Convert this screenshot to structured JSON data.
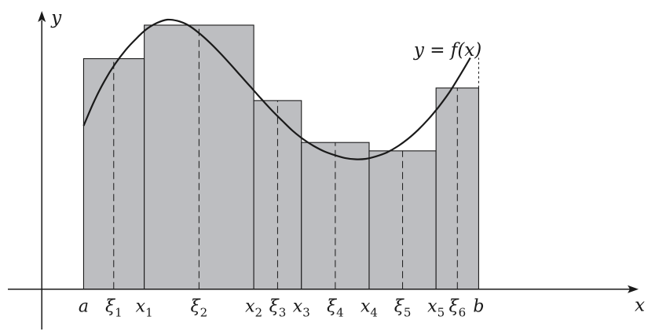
{
  "axes": {
    "x_label": "x",
    "y_label": "y",
    "x_range": [
      -1,
      14.5
    ],
    "y_range": [
      -1,
      6.9
    ]
  },
  "curve": {
    "label": "y = f(x)",
    "samples": [
      [
        1.0,
        3.9
      ],
      [
        1.25,
        4.48
      ],
      [
        1.5,
        4.97
      ],
      [
        1.75,
        5.37
      ],
      [
        2.0,
        5.7
      ],
      [
        2.25,
        5.97
      ],
      [
        2.5,
        6.2
      ],
      [
        2.75,
        6.35
      ],
      [
        3.0,
        6.43
      ],
      [
        3.25,
        6.4
      ],
      [
        3.5,
        6.3
      ],
      [
        3.75,
        6.12
      ],
      [
        4.0,
        5.9
      ],
      [
        4.25,
        5.65
      ],
      [
        4.5,
        5.38
      ],
      [
        4.75,
        5.1
      ],
      [
        5.0,
        4.82
      ],
      [
        5.25,
        4.54
      ],
      [
        5.5,
        4.27
      ],
      [
        5.75,
        4.02
      ],
      [
        6.0,
        3.78
      ],
      [
        6.25,
        3.58
      ],
      [
        6.5,
        3.42
      ],
      [
        6.75,
        3.29
      ],
      [
        7.0,
        3.2
      ],
      [
        7.25,
        3.13
      ],
      [
        7.5,
        3.1
      ],
      [
        7.75,
        3.11
      ],
      [
        8.0,
        3.17
      ],
      [
        8.25,
        3.26
      ],
      [
        8.5,
        3.4
      ],
      [
        8.75,
        3.58
      ],
      [
        9.0,
        3.8
      ],
      [
        9.25,
        4.06
      ],
      [
        9.5,
        4.36
      ],
      [
        9.75,
        4.7
      ],
      [
        10.0,
        5.1
      ],
      [
        10.25,
        5.52
      ]
    ]
  },
  "rectangles": [
    {
      "left": "a",
      "right": "x1",
      "tag": "ξ1",
      "x0": 1.0,
      "x1": 2.45,
      "xi": 1.72,
      "height": 5.5
    },
    {
      "left": "x1",
      "right": "x2",
      "tag": "ξ2",
      "x0": 2.45,
      "x1": 5.07,
      "xi": 3.76,
      "height": 6.3
    },
    {
      "left": "x2",
      "right": "x3",
      "tag": "ξ3",
      "x0": 5.07,
      "x1": 6.21,
      "xi": 5.64,
      "height": 4.5
    },
    {
      "left": "x3",
      "right": "x4",
      "tag": "ξ4",
      "x0": 6.21,
      "x1": 7.83,
      "xi": 7.02,
      "height": 3.5
    },
    {
      "left": "x4",
      "right": "x5",
      "tag": "ξ5",
      "x0": 7.83,
      "x1": 9.43,
      "xi": 8.63,
      "height": 3.3
    },
    {
      "left": "x5",
      "right": "b",
      "tag": "ξ6",
      "x0": 9.43,
      "x1": 10.45,
      "xi": 9.94,
      "height": 4.8
    }
  ],
  "partition_labels": [
    {
      "base": "a",
      "sub": "",
      "x": 1.0
    },
    {
      "base": "ξ",
      "sub": "1",
      "x": 1.72
    },
    {
      "base": "x",
      "sub": "1",
      "x": 2.45
    },
    {
      "base": "ξ",
      "sub": "2",
      "x": 3.76
    },
    {
      "base": "x",
      "sub": "2",
      "x": 5.07
    },
    {
      "base": "ξ",
      "sub": "3",
      "x": 5.64
    },
    {
      "base": "x",
      "sub": "3",
      "x": 6.21
    },
    {
      "base": "ξ",
      "sub": "4",
      "x": 7.02
    },
    {
      "base": "x",
      "sub": "4",
      "x": 7.83
    },
    {
      "base": "ξ",
      "sub": "5",
      "x": 8.63
    },
    {
      "base": "x",
      "sub": "5",
      "x": 9.43
    },
    {
      "base": "ξ",
      "sub": "6",
      "x": 9.94
    },
    {
      "base": "b",
      "sub": "",
      "x": 10.45
    }
  ],
  "colors": {
    "rect_fill": "#bdbec1",
    "stroke": "#1a1a1a",
    "background": "#ffffff"
  }
}
